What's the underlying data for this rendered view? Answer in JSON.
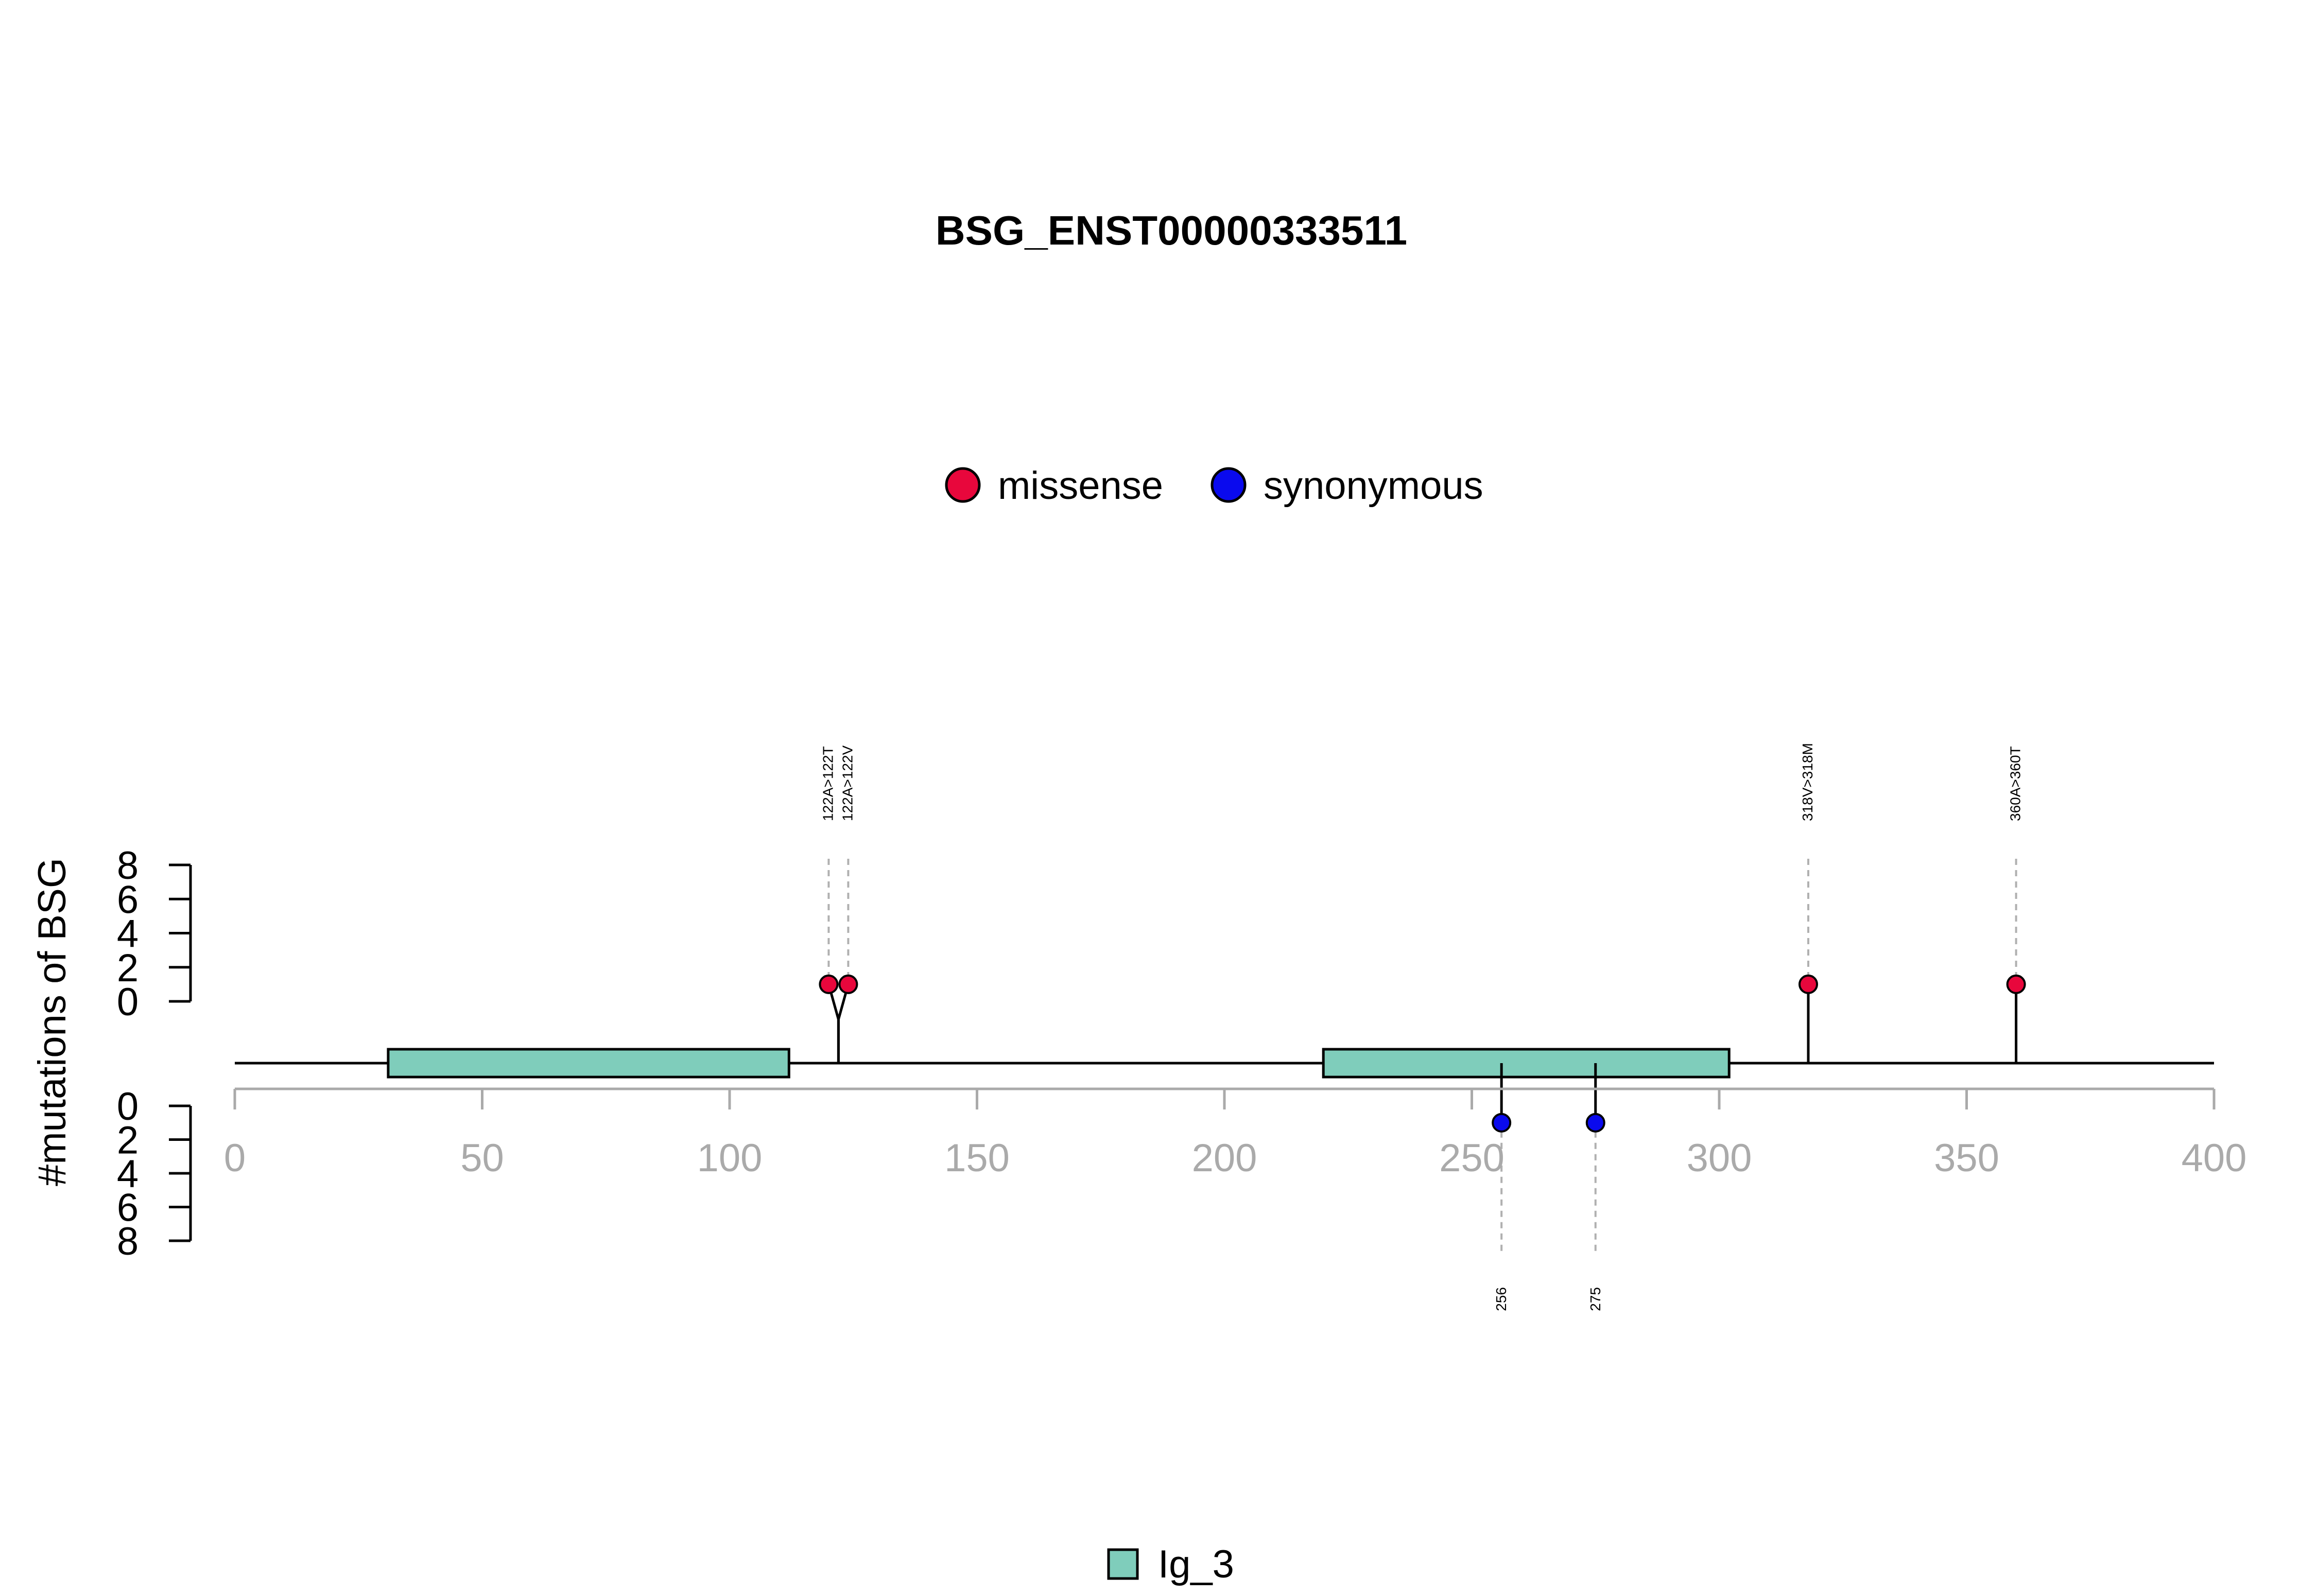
{
  "chart_data": {
    "type": "lollipop",
    "title": "BSG_ENST00000333511",
    "ylabel": "#mutations of BSG",
    "xlim": [
      0,
      400
    ],
    "x_ticks": [
      0,
      50,
      100,
      150,
      200,
      250,
      300,
      350,
      400
    ],
    "y_ticks_upper": [
      0,
      2,
      4,
      6,
      8
    ],
    "y_ticks_lower": [
      0,
      2,
      4,
      6,
      8
    ],
    "legend": {
      "placement": "top-center",
      "entries": [
        {
          "name": "missense",
          "color": "#e8073c"
        },
        {
          "name": "synonymous",
          "color": "#0a0aee"
        }
      ]
    },
    "domain_legend": {
      "placement": "bottom-center",
      "entries": [
        {
          "name": "Ig_3",
          "color": "#7fcdbb"
        }
      ]
    },
    "domains": [
      {
        "name": "Ig_3",
        "start": 31,
        "end": 112,
        "color": "#7fcdbb"
      },
      {
        "name": "Ig_3",
        "start": 220,
        "end": 302,
        "color": "#7fcdbb"
      }
    ],
    "mutations_upper": [
      {
        "position": 122,
        "label": "122A>122T",
        "count": 1,
        "type": "missense"
      },
      {
        "position": 122,
        "label": "122A>122V",
        "count": 1,
        "type": "missense"
      },
      {
        "position": 318,
        "label": "318V>318M",
        "count": 1,
        "type": "missense"
      },
      {
        "position": 360,
        "label": "360A>360T",
        "count": 1,
        "type": "missense"
      }
    ],
    "mutations_lower": [
      {
        "position": 256,
        "label": "256",
        "count": 1,
        "type": "synonymous"
      },
      {
        "position": 275,
        "label": "275",
        "count": 1,
        "type": "synonymous"
      }
    ],
    "axis_color": "#aaaaaa",
    "guide_color": "#b0b0b0"
  }
}
